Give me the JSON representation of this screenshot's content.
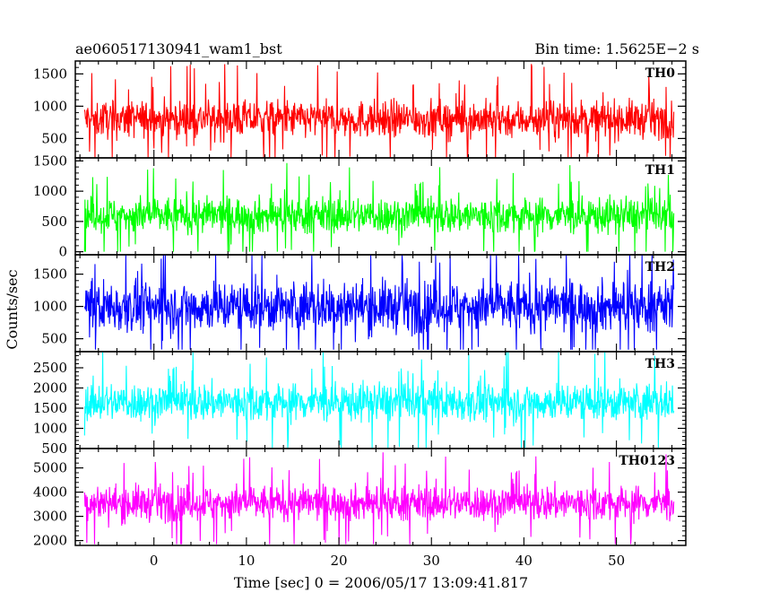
{
  "chart_data": {
    "type": "line",
    "header_left": "ae060517130941_wam1_bst",
    "header_right": "Bin time: 1.5625E−2 s",
    "xlabel": "Time [sec] 0 = 2006/05/17 13:09:41.817",
    "ylabel": "Counts/sec",
    "xlim": [
      -8.5,
      57.5
    ],
    "x_data_range": [
      -7.5,
      56.2
    ],
    "x_ticks": [
      0,
      10,
      20,
      30,
      40,
      50
    ],
    "x_tick_labels": [
      "0",
      "10",
      "20",
      "30",
      "40",
      "50"
    ],
    "grid": false,
    "panels": [
      {
        "name": "TH0",
        "color": "#ff0000",
        "ylim": [
          200,
          1700
        ],
        "y_ticks": [
          500,
          1000,
          1500
        ],
        "y_tick_labels": [
          "500",
          "1000",
          "1500"
        ],
        "mean": 800,
        "typical_low": 350,
        "typical_high": 1250,
        "min": 200,
        "max": 1700
      },
      {
        "name": "TH1",
        "color": "#00ff00",
        "ylim": [
          -50,
          1550
        ],
        "y_ticks": [
          0,
          500,
          1000,
          1500
        ],
        "y_tick_labels": [
          "0",
          "500",
          "1000",
          "1500"
        ],
        "mean": 600,
        "typical_low": 150,
        "typical_high": 1100,
        "min": 0,
        "max": 1550
      },
      {
        "name": "TH2",
        "color": "#0000ff",
        "ylim": [
          300,
          1800
        ],
        "y_ticks": [
          500,
          1000,
          1500
        ],
        "y_tick_labels": [
          "500",
          "1000",
          "1500"
        ],
        "mean": 1000,
        "typical_low": 450,
        "typical_high": 1700,
        "min": 330,
        "max": 1800
      },
      {
        "name": "TH3",
        "color": "#00ffff",
        "ylim": [
          500,
          2900
        ],
        "y_ticks": [
          500,
          1000,
          1500,
          2000,
          2500
        ],
        "y_tick_labels": [
          "500",
          "1000",
          "1500",
          "2000",
          "2500"
        ],
        "mean": 1650,
        "typical_low": 900,
        "typical_high": 2400,
        "min": 520,
        "max": 2900
      },
      {
        "name": "TH0123",
        "color": "#ff00ff",
        "ylim": [
          1800,
          5800
        ],
        "y_ticks": [
          2000,
          3000,
          4000,
          5000
        ],
        "y_tick_labels": [
          "2000",
          "3000",
          "4000",
          "5000"
        ],
        "mean": 3550,
        "typical_low": 2500,
        "typical_high": 4800,
        "min": 1850,
        "max": 5800
      }
    ]
  }
}
